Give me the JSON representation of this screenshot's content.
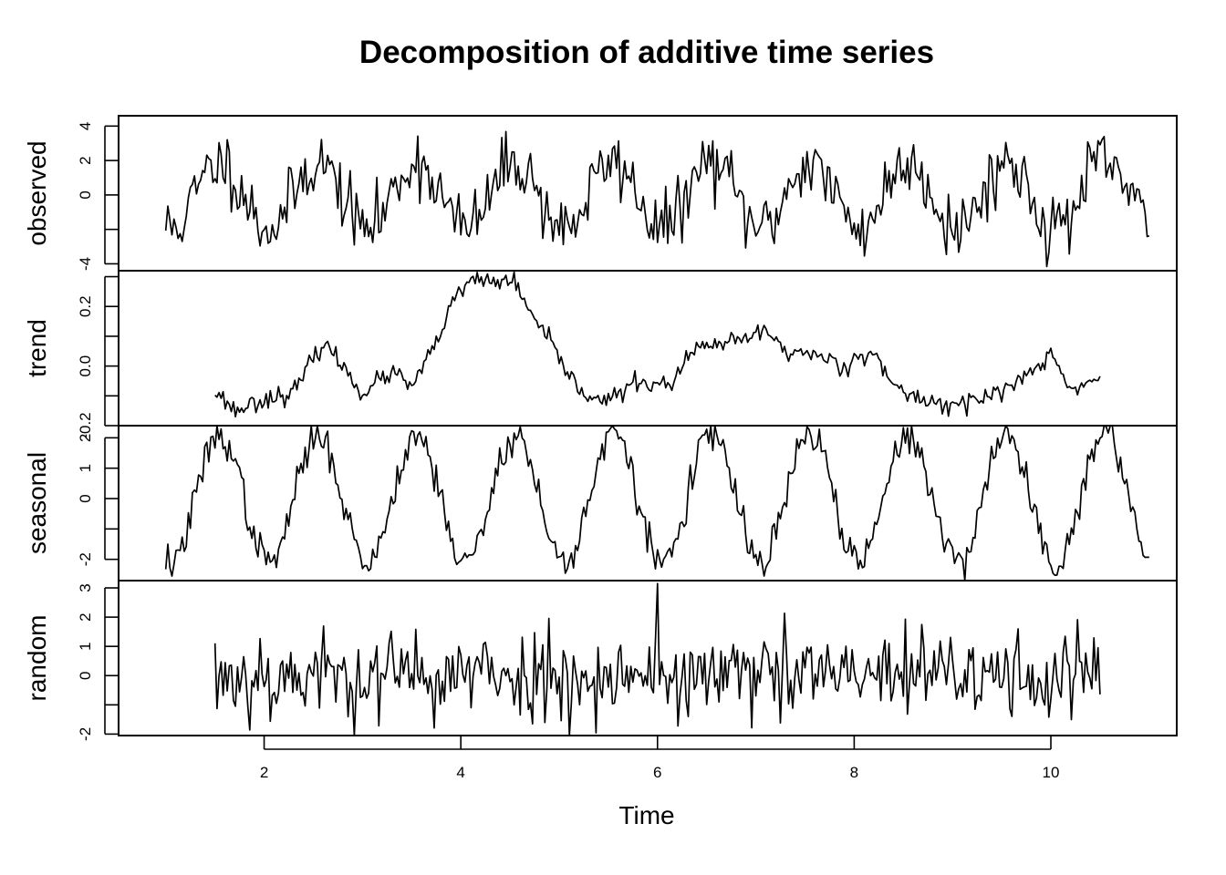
{
  "chart_data": {
    "type": "line",
    "title": "Decomposition of additive time series",
    "xlabel": "Time",
    "xlim": [
      0.52,
      11.28
    ],
    "x_ticks": [
      2,
      4,
      6,
      8,
      10
    ],
    "x_tick_labels": [
      "2",
      "4",
      "6",
      "8",
      "10"
    ],
    "frequency": 48,
    "grid": false,
    "legend": "none",
    "line_color": "#000000",
    "panels": [
      {
        "name": "observed",
        "ylabel": "observed",
        "ylim": [
          -4.4,
          4.6
        ],
        "y_ticks": [
          4,
          2,
          0,
          -2,
          -4
        ],
        "y_tick_labels": [
          "4",
          "2",
          "0",
          "",
          "-4"
        ],
        "start": 1.0,
        "end": 11.0,
        "amplitude": 1.9,
        "noise": 0.95,
        "seed": 11
      },
      {
        "name": "trend",
        "ylabel": "trend",
        "ylim": [
          -0.2,
          0.32
        ],
        "y_ticks": [
          0.3,
          0.2,
          0.1,
          0.0,
          -0.1,
          -0.2
        ],
        "y_tick_labels": [
          "",
          "0.2",
          "",
          "0.0",
          "",
          "-0.2"
        ],
        "start": 1.5,
        "end": 10.5,
        "knots_x": [
          1.5,
          1.7,
          2.0,
          2.3,
          2.6,
          2.8,
          3.0,
          3.3,
          3.5,
          3.7,
          3.9,
          4.1,
          4.4,
          4.5,
          4.7,
          4.9,
          5.2,
          5.5,
          5.8,
          6.1,
          6.4,
          6.8,
          7.1,
          7.3,
          7.6,
          7.9,
          8.2,
          8.4,
          8.6,
          8.8,
          9.0,
          9.3,
          9.7,
          10.0,
          10.2,
          10.5
        ],
        "knots_y": [
          -0.08,
          -0.15,
          -0.11,
          -0.09,
          0.08,
          0.0,
          -0.09,
          -0.02,
          -0.07,
          0.04,
          0.2,
          0.29,
          0.28,
          0.3,
          0.18,
          0.08,
          -0.08,
          -0.12,
          -0.05,
          -0.07,
          0.06,
          0.08,
          0.12,
          0.05,
          0.04,
          0.0,
          0.06,
          -0.08,
          -0.1,
          -0.12,
          -0.13,
          -0.11,
          -0.05,
          0.04,
          -0.08,
          -0.04
        ],
        "noise": 0.016,
        "seed": 23
      },
      {
        "name": "seasonal",
        "ylabel": "seasonal",
        "ylim": [
          -2.7,
          2.4
        ],
        "y_ticks": [
          2,
          1,
          0,
          -1,
          -2
        ],
        "y_tick_labels": [
          "2",
          "1",
          "0",
          "",
          "-2"
        ],
        "start": 1.0,
        "end": 11.0,
        "amplitude": 2.1,
        "noise": 0.3,
        "seed": 37
      },
      {
        "name": "random",
        "ylabel": "random",
        "ylim": [
          -2.05,
          3.25
        ],
        "y_ticks": [
          3,
          2,
          1,
          0,
          -1,
          -2
        ],
        "y_tick_labels": [
          "3",
          "2",
          "1",
          "0",
          "",
          "-2"
        ],
        "start": 1.5,
        "end": 10.5,
        "noise": 0.78,
        "spike_x": 6.0,
        "spike_y": 3.15,
        "seed": 53
      }
    ]
  }
}
